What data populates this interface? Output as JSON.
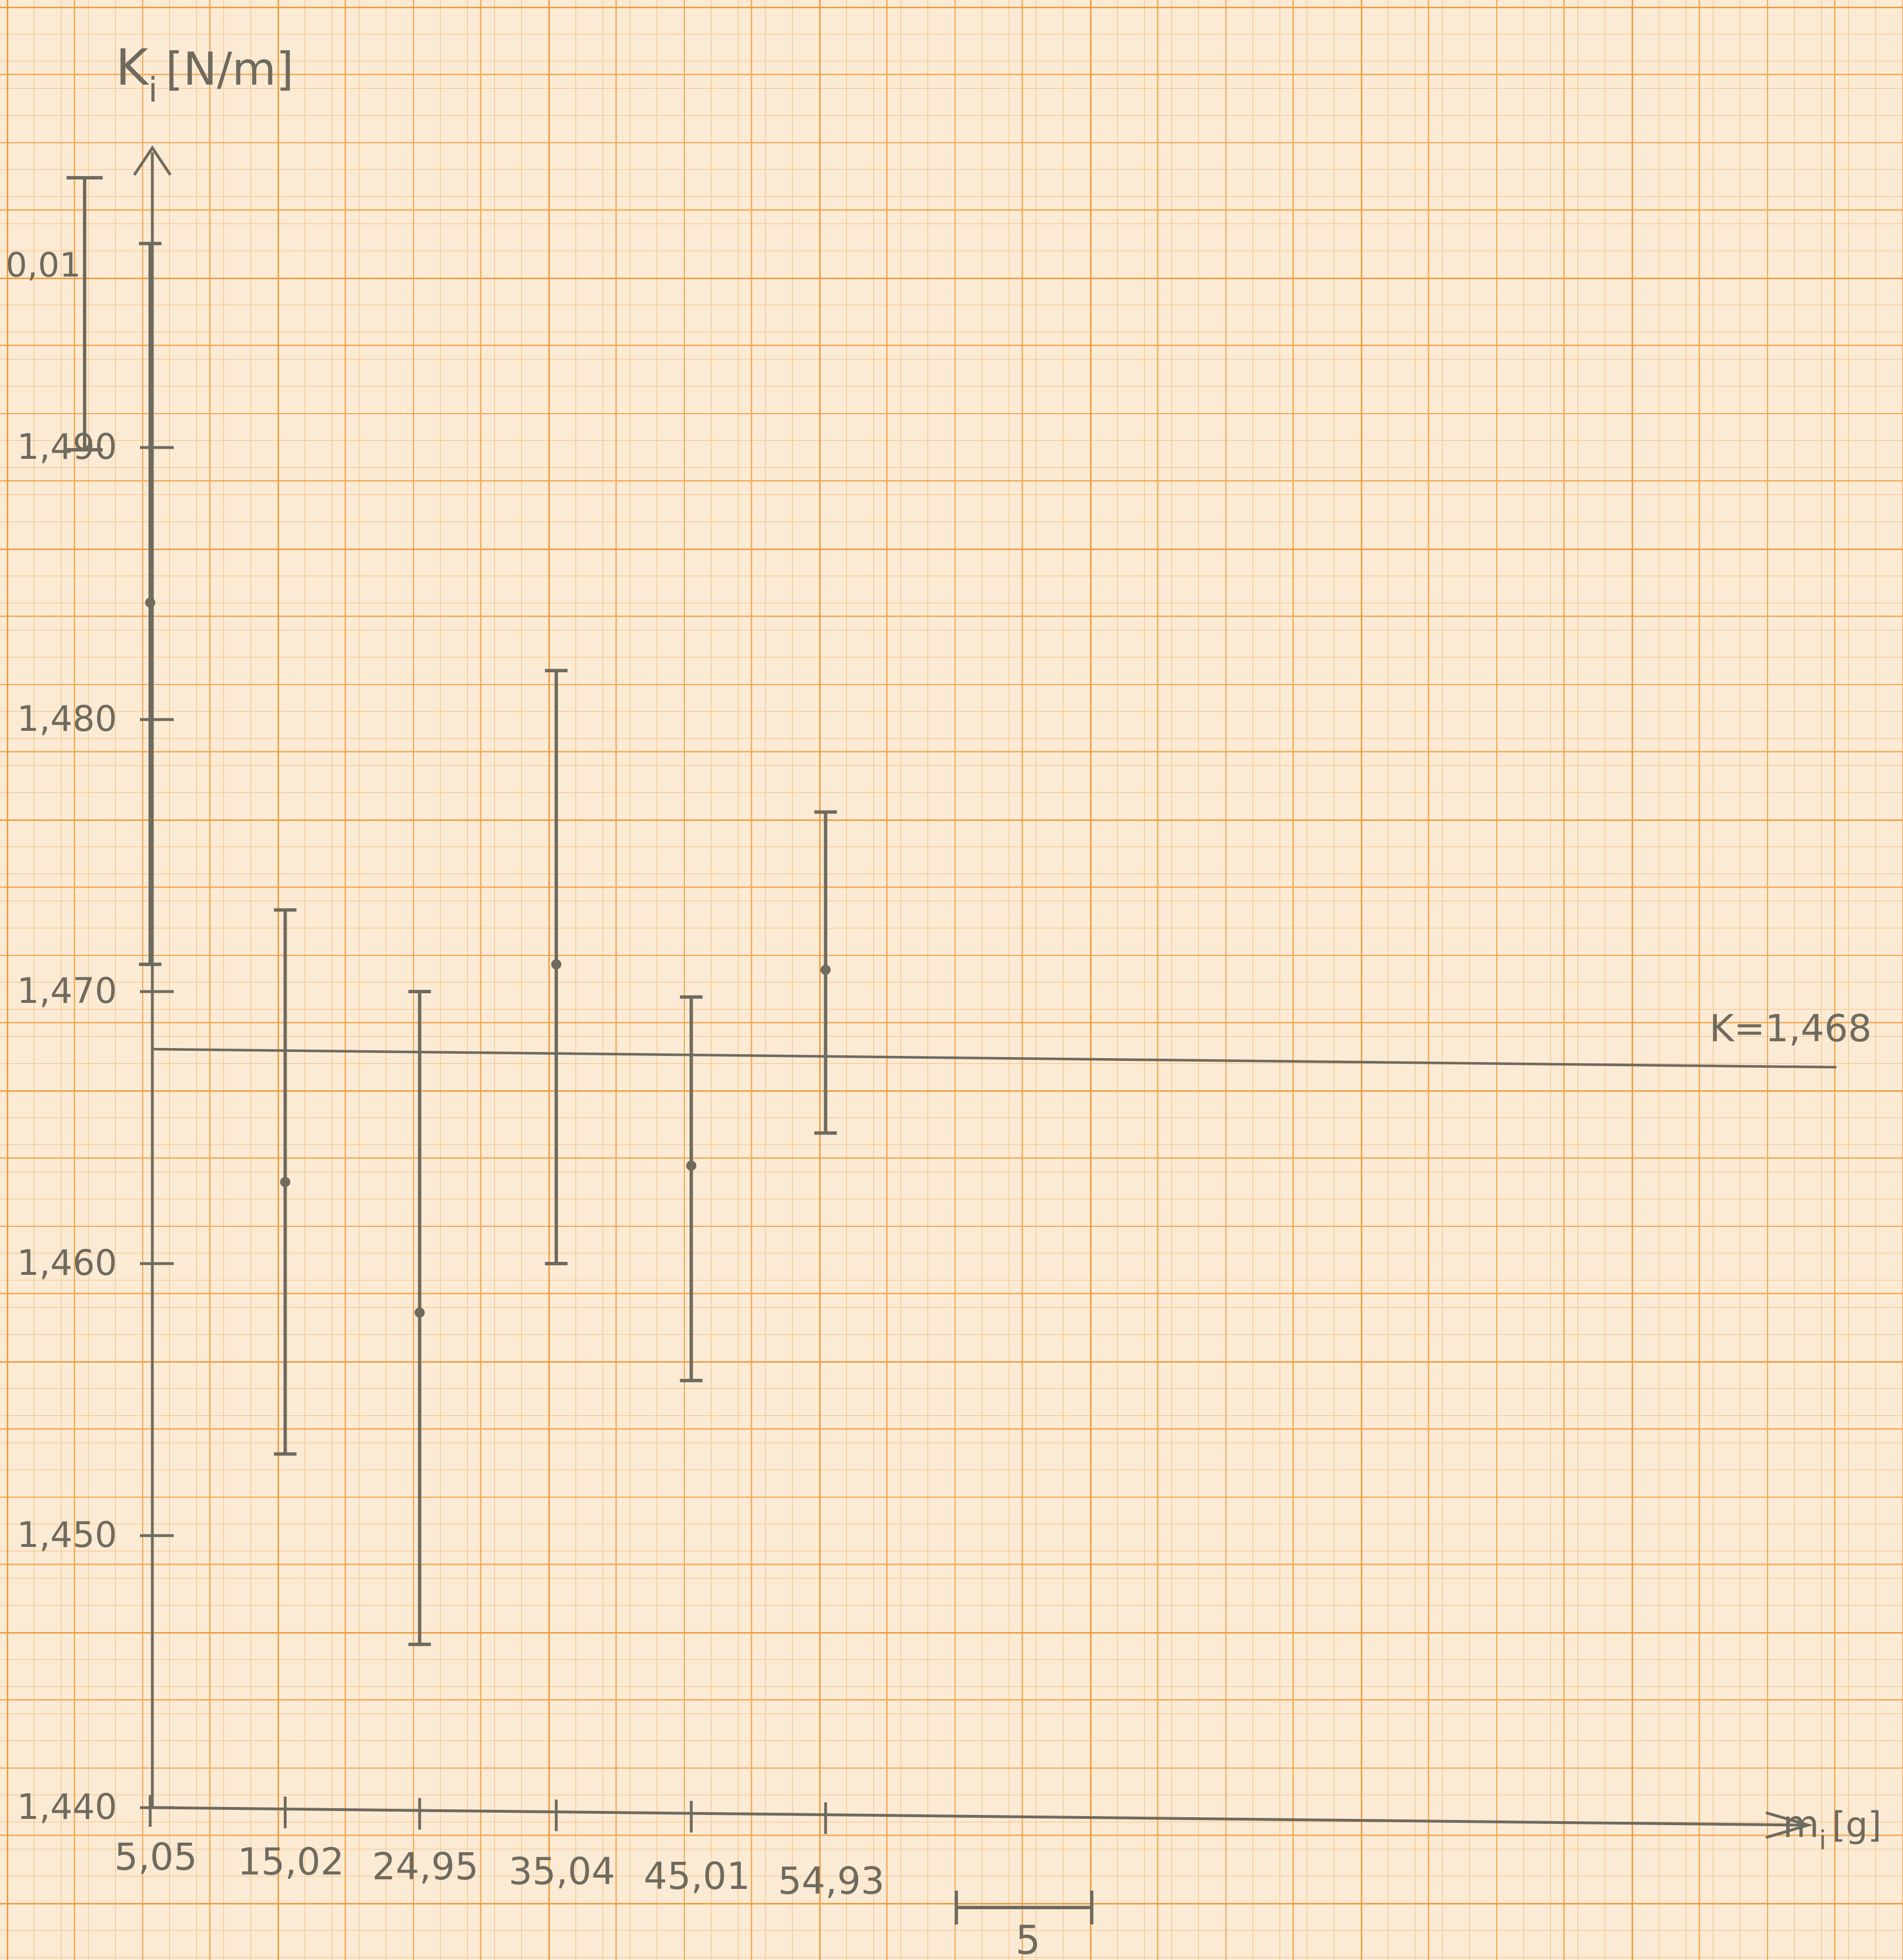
{
  "chart_data": {
    "type": "scatter",
    "title": "",
    "ylabel": {
      "main": "K",
      "sub": "i",
      "unit": "[N/m]"
    },
    "xlabel": {
      "main": "m",
      "sub": "i",
      "unit": "[g]"
    },
    "ylim": [
      1.44,
      1.497
    ],
    "xlim": [
      0,
      63
    ],
    "yticks": [
      1.44,
      1.45,
      1.46,
      1.47,
      1.48,
      1.49
    ],
    "ytick_labels": [
      "1,440",
      "1,450",
      "1,460",
      "1,470",
      "1,480",
      "1,490"
    ],
    "xtick_labels": [
      "5,05",
      "15,02",
      "24,95",
      "35,04",
      "45,01",
      "54,93"
    ],
    "points": [
      {
        "x": 5.05,
        "y": 1.4843,
        "ylow": 1.471,
        "yhigh": 1.4975
      },
      {
        "x": 15.02,
        "y": 1.463,
        "ylow": 1.453,
        "yhigh": 1.473
      },
      {
        "x": 24.95,
        "y": 1.4582,
        "ylow": 1.446,
        "yhigh": 1.47
      },
      {
        "x": 35.04,
        "y": 1.471,
        "ylow": 1.46,
        "yhigh": 1.4818
      },
      {
        "x": 45.01,
        "y": 1.4636,
        "ylow": 1.4557,
        "yhigh": 1.4698
      },
      {
        "x": 54.93,
        "y": 1.4708,
        "ylow": 1.4648,
        "yhigh": 1.4766
      }
    ],
    "reference_line": {
      "y": 1.4678,
      "label": "K=1,468"
    },
    "y_scale_marker": {
      "label": "0,01",
      "value": 0.01
    },
    "x_scale_marker": {
      "label": "5",
      "value": 5
    },
    "grid": true,
    "colors": {
      "paper": "#fbead4",
      "grid_fine": "#f2b468",
      "grid_major": "#eb9a3c",
      "pencil": "#6e6a5e"
    }
  }
}
